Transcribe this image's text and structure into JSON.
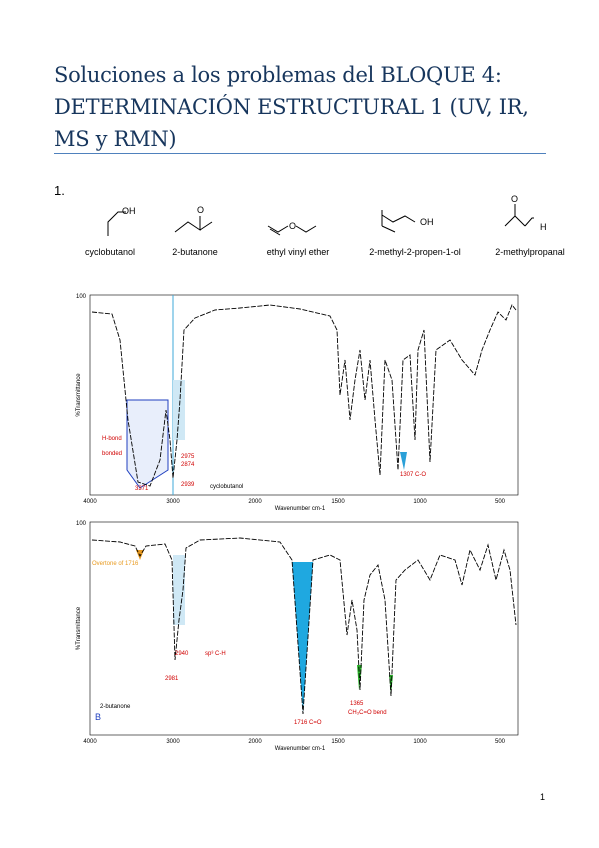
{
  "header": {
    "title_lines": [
      "Soluciones a los problemas del BLOQUE 4:",
      "DETERMINACIÓN ESTRUCTURAL 1 (UV, IR,",
      "MS y RMN)"
    ]
  },
  "problem": {
    "number": "1.",
    "compounds": [
      {
        "name": "cyclobutanol",
        "atoms": [
          "OH"
        ]
      },
      {
        "name": "2-butanone",
        "atoms": [
          "O"
        ]
      },
      {
        "name": "ethyl vinyl ether",
        "atoms": [
          "O"
        ]
      },
      {
        "name": "2-methyl-2-propen-1-ol",
        "atoms": [
          "OH"
        ]
      },
      {
        "name": "2-methylpropanal",
        "atoms": [
          "O",
          "H"
        ]
      }
    ]
  },
  "spectra": [
    {
      "top_tick": "100",
      "y_label": "%Transmittance",
      "x_label": "Wavenumber cm-1",
      "x_ticks": [
        "4000",
        "3000",
        "2000",
        "1500",
        "1000",
        "500"
      ],
      "annotations": [
        "H-bond",
        "bonded",
        "3371",
        "2975",
        "2874",
        "2939",
        "cyclobutanol",
        "1307 C-O"
      ]
    },
    {
      "top_tick": "100",
      "y_label": "%Transmittance",
      "x_label": "Wavenumber cm-1",
      "x_ticks": [
        "4000",
        "3000",
        "2000",
        "1500",
        "1000",
        "500"
      ],
      "annotations": [
        "Overtone of 1716",
        "2981",
        "2940",
        "sp³ C-H",
        "1716 C=O",
        "1365",
        "CH₃C=O bend",
        "2-butanone",
        "B"
      ]
    }
  ],
  "page_number": "1"
}
